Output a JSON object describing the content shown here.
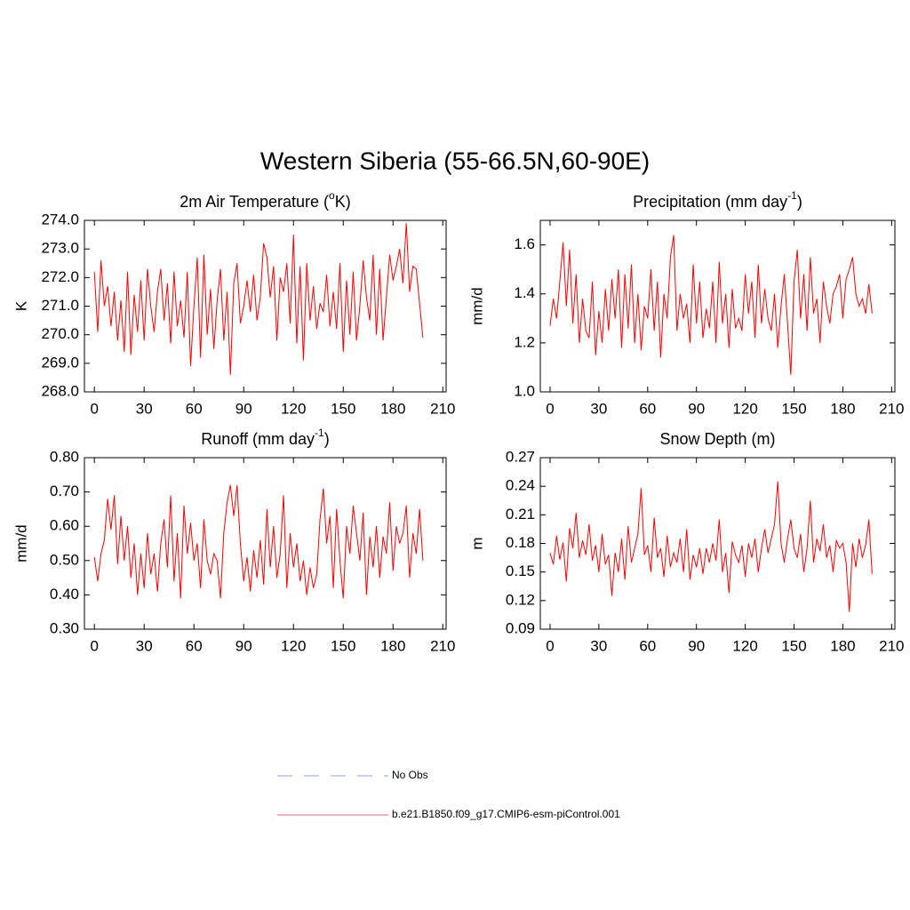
{
  "title": "Western Siberia (55-66.5N,60-90E)",
  "legend_extra": {
    "name": "No Obs",
    "color": "#a9b0f5",
    "dash": true
  },
  "chart_data": [
    {
      "type": "line",
      "title": [
        "2m Air Temperature (",
        "o",
        "K)"
      ],
      "ylabel": "K",
      "x": [
        0,
        2,
        4,
        6,
        8,
        10,
        12,
        14,
        16,
        18,
        20,
        22,
        24,
        26,
        28,
        30,
        32,
        34,
        36,
        38,
        40,
        42,
        44,
        46,
        48,
        50,
        52,
        54,
        56,
        58,
        60,
        62,
        64,
        66,
        68,
        70,
        72,
        74,
        76,
        78,
        80,
        82,
        84,
        86,
        88,
        90,
        92,
        94,
        96,
        98,
        100,
        102,
        104,
        106,
        108,
        110,
        112,
        114,
        116,
        118,
        120,
        122,
        124,
        126,
        128,
        130,
        132,
        134,
        136,
        138,
        140,
        142,
        144,
        146,
        148,
        150,
        152,
        154,
        156,
        158,
        160,
        162,
        164,
        166,
        168,
        170,
        172,
        174,
        176,
        178,
        180,
        182,
        184,
        186,
        188,
        190,
        192,
        194,
        196,
        198
      ],
      "series": [
        {
          "name": "b.e21.B1850.f09_g17.CMIP6-esm-piControl.001",
          "color": "#ff0000",
          "values": [
            272.2,
            270.1,
            272.6,
            271.0,
            271.7,
            270.3,
            271.5,
            269.8,
            271.2,
            269.4,
            272.2,
            269.3,
            271.4,
            270.1,
            271.9,
            269.8,
            272.3,
            271.0,
            270.1,
            271.5,
            272.3,
            270.5,
            271.8,
            269.7,
            272.2,
            270.3,
            271.2,
            269.9,
            272.2,
            268.9,
            271.0,
            272.7,
            269.2,
            272.8,
            270.0,
            271.6,
            269.5,
            271.2,
            272.3,
            269.8,
            271.5,
            268.6,
            271.8,
            272.5,
            270.4,
            271.0,
            271.9,
            270.8,
            272.1,
            270.5,
            271.3,
            273.2,
            272.7,
            271.3,
            272.4,
            269.8,
            272.0,
            271.5,
            272.5,
            270.4,
            273.5,
            269.7,
            272.4,
            269.1,
            272.5,
            270.5,
            271.7,
            270.2,
            271.1,
            270.8,
            272.1,
            270.3,
            271.5,
            270.2,
            272.5,
            269.4,
            271.9,
            270.0,
            272.2,
            269.8,
            271.0,
            272.6,
            271.3,
            270.5,
            272.8,
            270.0,
            272.3,
            269.8,
            271.3,
            272.8,
            271.9,
            272.4,
            273.0,
            271.8,
            273.9,
            271.5,
            272.4,
            272.3,
            271.1,
            269.9
          ]
        }
      ],
      "xlim": [
        -6,
        212
      ],
      "xticks": [
        0,
        30,
        60,
        90,
        120,
        150,
        180,
        210
      ],
      "ylim": [
        268,
        274
      ],
      "yticks": [
        {
          "value": 268,
          "label": "268.0"
        },
        {
          "value": 269,
          "label": "269.0"
        },
        {
          "value": 270,
          "label": "270.0"
        },
        {
          "value": 271,
          "label": "271.0"
        },
        {
          "value": 272,
          "label": "272.0"
        },
        {
          "value": 273,
          "label": "273.0"
        },
        {
          "value": 274,
          "label": "274.0"
        }
      ]
    },
    {
      "type": "line",
      "title": [
        "Precipitation (mm day",
        "-1",
        ")"
      ],
      "ylabel": "mm/d",
      "x": [
        0,
        2,
        4,
        6,
        8,
        10,
        12,
        14,
        16,
        18,
        20,
        22,
        24,
        26,
        28,
        30,
        32,
        34,
        36,
        38,
        40,
        42,
        44,
        46,
        48,
        50,
        52,
        54,
        56,
        58,
        60,
        62,
        64,
        66,
        68,
        70,
        72,
        74,
        76,
        78,
        80,
        82,
        84,
        86,
        88,
        90,
        92,
        94,
        96,
        98,
        100,
        102,
        104,
        106,
        108,
        110,
        112,
        114,
        116,
        118,
        120,
        122,
        124,
        126,
        128,
        130,
        132,
        134,
        136,
        138,
        140,
        142,
        144,
        146,
        148,
        150,
        152,
        154,
        156,
        158,
        160,
        162,
        164,
        166,
        168,
        170,
        172,
        174,
        176,
        178,
        180,
        182,
        184,
        186,
        188,
        190,
        192,
        194,
        196,
        198
      ],
      "series": [
        {
          "name": "b.e21.B1850.f09_g17.CMIP6-esm-piControl.001",
          "color": "#ff0000",
          "values": [
            1.27,
            1.38,
            1.3,
            1.45,
            1.61,
            1.35,
            1.58,
            1.28,
            1.48,
            1.2,
            1.38,
            1.25,
            1.22,
            1.45,
            1.15,
            1.33,
            1.2,
            1.42,
            1.25,
            1.46,
            1.3,
            1.5,
            1.18,
            1.48,
            1.26,
            1.52,
            1.2,
            1.4,
            1.17,
            1.35,
            1.3,
            1.5,
            1.25,
            1.45,
            1.14,
            1.4,
            1.3,
            1.55,
            1.64,
            1.25,
            1.4,
            1.3,
            1.36,
            1.2,
            1.52,
            1.28,
            1.45,
            1.22,
            1.34,
            1.26,
            1.45,
            1.2,
            1.53,
            1.28,
            1.4,
            1.18,
            1.42,
            1.26,
            1.3,
            1.25,
            1.48,
            1.32,
            1.45,
            1.22,
            1.52,
            1.28,
            1.42,
            1.3,
            1.25,
            1.4,
            1.18,
            1.35,
            1.48,
            1.28,
            1.07,
            1.45,
            1.58,
            1.3,
            1.48,
            1.25,
            1.55,
            1.32,
            1.38,
            1.2,
            1.45,
            1.35,
            1.28,
            1.4,
            1.43,
            1.48,
            1.3,
            1.46,
            1.5,
            1.55,
            1.4,
            1.35,
            1.38,
            1.32,
            1.44,
            1.32
          ]
        }
      ],
      "xlim": [
        -6,
        212
      ],
      "xticks": [
        0,
        30,
        60,
        90,
        120,
        150,
        180,
        210
      ],
      "ylim": [
        1.0,
        1.7
      ],
      "yticks": [
        {
          "value": 1.0,
          "label": "1.0"
        },
        1.2,
        1.4,
        1.6
      ]
    },
    {
      "type": "line",
      "title": [
        "Runoff (mm day",
        "-1",
        ")"
      ],
      "ylabel": "mm/d",
      "x": [
        0,
        2,
        4,
        6,
        8,
        10,
        12,
        14,
        16,
        18,
        20,
        22,
        24,
        26,
        28,
        30,
        32,
        34,
        36,
        38,
        40,
        42,
        44,
        46,
        48,
        50,
        52,
        54,
        56,
        58,
        60,
        62,
        64,
        66,
        68,
        70,
        72,
        74,
        76,
        78,
        80,
        82,
        84,
        86,
        88,
        90,
        92,
        94,
        96,
        98,
        100,
        102,
        104,
        106,
        108,
        110,
        112,
        114,
        116,
        118,
        120,
        122,
        124,
        126,
        128,
        130,
        132,
        134,
        136,
        138,
        140,
        142,
        144,
        146,
        148,
        150,
        152,
        154,
        156,
        158,
        160,
        162,
        164,
        166,
        168,
        170,
        172,
        174,
        176,
        178,
        180,
        182,
        184,
        186,
        188,
        190,
        192,
        194,
        196,
        198
      ],
      "series": [
        {
          "name": "b.e21.B1850.f09_g17.CMIP6-esm-piControl.001",
          "color": "#ff0000",
          "values": [
            0.51,
            0.44,
            0.52,
            0.56,
            0.68,
            0.59,
            0.69,
            0.49,
            0.63,
            0.5,
            0.6,
            0.45,
            0.55,
            0.4,
            0.52,
            0.42,
            0.58,
            0.46,
            0.52,
            0.41,
            0.55,
            0.62,
            0.48,
            0.69,
            0.44,
            0.58,
            0.39,
            0.66,
            0.52,
            0.61,
            0.5,
            0.55,
            0.42,
            0.62,
            0.5,
            0.46,
            0.52,
            0.5,
            0.39,
            0.58,
            0.67,
            0.72,
            0.63,
            0.72,
            0.55,
            0.44,
            0.51,
            0.41,
            0.53,
            0.45,
            0.56,
            0.43,
            0.65,
            0.48,
            0.6,
            0.45,
            0.52,
            0.69,
            0.42,
            0.58,
            0.48,
            0.55,
            0.44,
            0.5,
            0.4,
            0.48,
            0.42,
            0.46,
            0.62,
            0.71,
            0.55,
            0.63,
            0.42,
            0.65,
            0.5,
            0.39,
            0.6,
            0.52,
            0.66,
            0.58,
            0.5,
            0.64,
            0.4,
            0.57,
            0.48,
            0.6,
            0.45,
            0.57,
            0.52,
            0.67,
            0.47,
            0.6,
            0.55,
            0.58,
            0.66,
            0.45,
            0.58,
            0.52,
            0.65,
            0.5
          ]
        }
      ],
      "xlim": [
        -6,
        212
      ],
      "xticks": [
        0,
        30,
        60,
        90,
        120,
        150,
        180,
        210
      ],
      "ylim": [
        0.3,
        0.8
      ],
      "yticks": [
        {
          "value": 0.3,
          "label": "0.30"
        },
        {
          "value": 0.4,
          "label": "0.40"
        },
        {
          "value": 0.5,
          "label": "0.50"
        },
        {
          "value": 0.6,
          "label": "0.60"
        },
        {
          "value": 0.7,
          "label": "0.70"
        },
        {
          "value": 0.8,
          "label": "0.80"
        }
      ]
    },
    {
      "type": "line",
      "title": [
        "Snow Depth (m)"
      ],
      "ylabel": "m",
      "x": [
        0,
        2,
        4,
        6,
        8,
        10,
        12,
        14,
        16,
        18,
        20,
        22,
        24,
        26,
        28,
        30,
        32,
        34,
        36,
        38,
        40,
        42,
        44,
        46,
        48,
        50,
        52,
        54,
        56,
        58,
        60,
        62,
        64,
        66,
        68,
        70,
        72,
        74,
        76,
        78,
        80,
        82,
        84,
        86,
        88,
        90,
        92,
        94,
        96,
        98,
        100,
        102,
        104,
        106,
        108,
        110,
        112,
        114,
        116,
        118,
        120,
        122,
        124,
        126,
        128,
        130,
        132,
        134,
        136,
        138,
        140,
        142,
        144,
        146,
        148,
        150,
        152,
        154,
        156,
        158,
        160,
        162,
        164,
        166,
        168,
        170,
        172,
        174,
        176,
        178,
        180,
        182,
        184,
        186,
        188,
        190,
        192,
        194,
        196,
        198
      ],
      "series": [
        {
          "name": "b.e21.B1850.f09_g17.CMIP6-esm-piControl.001",
          "color": "#ff0000",
          "values": [
            0.17,
            0.158,
            0.188,
            0.163,
            0.181,
            0.14,
            0.196,
            0.175,
            0.212,
            0.165,
            0.183,
            0.168,
            0.2,
            0.162,
            0.178,
            0.15,
            0.19,
            0.158,
            0.168,
            0.125,
            0.17,
            0.15,
            0.185,
            0.142,
            0.198,
            0.16,
            0.175,
            0.19,
            0.238,
            0.168,
            0.178,
            0.15,
            0.207,
            0.165,
            0.175,
            0.145,
            0.188,
            0.155,
            0.17,
            0.16,
            0.185,
            0.15,
            0.195,
            0.142,
            0.168,
            0.155,
            0.175,
            0.148,
            0.175,
            0.16,
            0.18,
            0.162,
            0.205,
            0.15,
            0.17,
            0.128,
            0.182,
            0.168,
            0.16,
            0.178,
            0.145,
            0.18,
            0.165,
            0.185,
            0.15,
            0.175,
            0.195,
            0.17,
            0.185,
            0.2,
            0.245,
            0.18,
            0.16,
            0.185,
            0.205,
            0.175,
            0.165,
            0.19,
            0.15,
            0.175,
            0.225,
            0.16,
            0.185,
            0.172,
            0.2,
            0.165,
            0.178,
            0.15,
            0.183,
            0.175,
            0.18,
            0.16,
            0.108,
            0.18,
            0.155,
            0.185,
            0.165,
            0.178,
            0.205,
            0.148
          ]
        }
      ],
      "xlim": [
        -6,
        212
      ],
      "xticks": [
        0,
        30,
        60,
        90,
        120,
        150,
        180,
        210
      ],
      "ylim": [
        0.09,
        0.27
      ],
      "yticks": [
        0.09,
        0.12,
        0.15,
        0.18,
        0.21,
        0.24,
        0.27
      ]
    }
  ]
}
